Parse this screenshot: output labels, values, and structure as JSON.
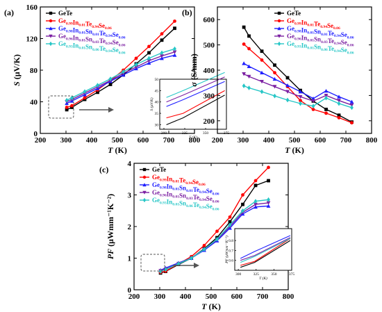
{
  "figure": {
    "panels": [
      "(a)",
      "(b)",
      "(c)"
    ]
  },
  "chart_data": [
    {
      "panel": "(a)",
      "type": "line",
      "xlabel": "T (K)",
      "ylabel": "S (μV/K)",
      "xlim": [
        200,
        800
      ],
      "ylim": [
        0,
        160
      ],
      "xticks": [
        200,
        300,
        400,
        500,
        600,
        700,
        800
      ],
      "yticks": [
        0,
        40,
        80,
        120,
        160
      ],
      "grid": false,
      "legend": "top-left",
      "series": [
        {
          "name": "GeTe",
          "color": "#000000",
          "marker": "square",
          "x": [
            303,
            323,
            373,
            423,
            473,
            523,
            573,
            623,
            673,
            723
          ],
          "y": [
            30,
            33,
            43,
            52,
            62,
            74,
            88,
            102,
            118,
            133
          ]
        },
        {
          "name": "Ge0.99In0.01Te0.94Se0.06",
          "color": "#ff0000",
          "marker": "circle",
          "x": [
            303,
            323,
            373,
            423,
            473,
            523,
            573,
            623,
            673,
            723
          ],
          "y": [
            33,
            35,
            45,
            55,
            67,
            80,
            95,
            110,
            126,
            142
          ]
        },
        {
          "name": "Ge0.98In0.01Sn0.01Te0.94Se0.06",
          "color": "#1f1fff",
          "marker": "triangle-up",
          "x": [
            303,
            323,
            373,
            423,
            473,
            523,
            573,
            623,
            673,
            723
          ],
          "y": [
            38,
            41,
            49,
            57,
            66,
            74,
            82,
            89,
            95,
            99
          ]
        },
        {
          "name": "Ge0.96In0.01Sn0.03Te0.94Se0.06",
          "color": "#7b1fa2",
          "marker": "triangle-down",
          "x": [
            303,
            323,
            373,
            423,
            473,
            523,
            573,
            623,
            673,
            723
          ],
          "y": [
            40,
            43,
            51,
            59,
            67,
            76,
            84,
            92,
            98,
            103
          ]
        },
        {
          "name": "Ge0.93In0.01Sn0.06Te0.94Se0.06",
          "color": "#26c6c6",
          "marker": "diamond",
          "x": [
            303,
            323,
            373,
            423,
            473,
            523,
            573,
            623,
            673,
            723
          ],
          "y": [
            42,
            45,
            53,
            61,
            69,
            78,
            87,
            95,
            102,
            107
          ]
        }
      ],
      "inset": {
        "xlabel": "T (K)",
        "ylabel": "S (μV/K)",
        "xlim": [
          295,
          375
        ],
        "ylim": [
          28,
          50
        ],
        "xticks": [
          300,
          325,
          350,
          375
        ],
        "yticks": [
          30,
          35,
          40,
          45,
          50
        ]
      }
    },
    {
      "panel": "(b)",
      "type": "line",
      "xlabel": "T (K)",
      "ylabel": "σ (S/mm)",
      "xlim": [
        200,
        800
      ],
      "ylim": [
        150,
        650
      ],
      "xticks": [
        200,
        300,
        400,
        500,
        600,
        700,
        800
      ],
      "yticks": [
        200,
        300,
        400,
        500,
        600
      ],
      "grid": false,
      "legend": "top-right",
      "series": [
        {
          "name": "GeTe",
          "color": "#000000",
          "marker": "square",
          "x": [
            303,
            323,
            373,
            423,
            473,
            523,
            573,
            623,
            673,
            723
          ],
          "y": [
            570,
            535,
            475,
            420,
            370,
            320,
            278,
            245,
            222,
            195
          ]
        },
        {
          "name": "Ge0.99In0.01Te0.94Se0.06",
          "color": "#ff0000",
          "marker": "circle",
          "x": [
            303,
            323,
            373,
            423,
            473,
            523,
            573,
            623,
            673,
            723
          ],
          "y": [
            503,
            485,
            440,
            390,
            335,
            280,
            245,
            230,
            212,
            192
          ]
        },
        {
          "name": "Ge0.98In0.01Sn0.01Te0.94Se0.06",
          "color": "#1f1fff",
          "marker": "triangle-up",
          "x": [
            303,
            323,
            373,
            423,
            473,
            523,
            573,
            623,
            673,
            723
          ],
          "y": [
            427,
            415,
            390,
            365,
            340,
            315,
            288,
            318,
            295,
            275
          ]
        },
        {
          "name": "Ge0.96In0.01Sn0.03Te0.94Se0.06",
          "color": "#7b1fa2",
          "marker": "triangle-down",
          "x": [
            303,
            323,
            373,
            423,
            473,
            523,
            573,
            623,
            673,
            723
          ],
          "y": [
            385,
            375,
            355,
            335,
            315,
            295,
            278,
            300,
            280,
            262
          ]
        },
        {
          "name": "Ge0.93In0.01Sn0.06Te0.94Se0.06",
          "color": "#26c6c6",
          "marker": "diamond",
          "x": [
            303,
            323,
            373,
            423,
            473,
            523,
            573,
            623,
            673,
            723
          ],
          "y": [
            338,
            330,
            315,
            298,
            282,
            268,
            258,
            290,
            268,
            252
          ]
        }
      ]
    },
    {
      "panel": "(c)",
      "type": "line",
      "xlabel": "T (K)",
      "ylabel": "PF (μWmm⁻¹K⁻²)",
      "xlim": [
        200,
        800
      ],
      "ylim": [
        0,
        4
      ],
      "xticks": [
        200,
        300,
        400,
        500,
        600,
        700,
        800
      ],
      "yticks": [
        0,
        1,
        2,
        3,
        4
      ],
      "grid": false,
      "legend": "top-left",
      "series": [
        {
          "name": "GeTe",
          "color": "#000000",
          "marker": "square",
          "x": [
            303,
            323,
            373,
            423,
            473,
            523,
            573,
            623,
            673,
            723
          ],
          "y": [
            0.53,
            0.58,
            0.8,
            1.0,
            1.3,
            1.65,
            2.15,
            2.7,
            3.3,
            3.45
          ]
        },
        {
          "name": "Ge0.99In0.01Te0.94Se0.06",
          "color": "#ff0000",
          "marker": "circle",
          "x": [
            303,
            323,
            373,
            423,
            473,
            523,
            573,
            623,
            673,
            723
          ],
          "y": [
            0.55,
            0.59,
            0.82,
            1.05,
            1.4,
            1.85,
            2.3,
            3.0,
            3.45,
            3.87
          ]
        },
        {
          "name": "Ge0.98In0.01Sn0.01Te0.94Se0.06",
          "color": "#1f1fff",
          "marker": "triangle-up",
          "x": [
            303,
            323,
            373,
            423,
            473,
            523,
            573,
            623,
            673,
            723
          ],
          "y": [
            0.62,
            0.69,
            0.85,
            1.0,
            1.25,
            1.55,
            1.95,
            2.4,
            2.62,
            2.65
          ]
        },
        {
          "name": "Ge0.96In0.01Sn0.03Te0.94Se0.06",
          "color": "#7b1fa2",
          "marker": "triangle-down",
          "x": [
            303,
            323,
            373,
            423,
            473,
            523,
            573,
            623,
            673,
            723
          ],
          "y": [
            0.6,
            0.65,
            0.83,
            1.0,
            1.28,
            1.58,
            2.0,
            2.45,
            2.7,
            2.75
          ]
        },
        {
          "name": "Ge0.93In0.01Sn0.06Te0.94Se0.06",
          "color": "#26c6c6",
          "marker": "diamond",
          "x": [
            303,
            323,
            373,
            423,
            473,
            523,
            573,
            623,
            673,
            723
          ],
          "y": [
            0.58,
            0.64,
            0.82,
            1.0,
            1.28,
            1.6,
            2.05,
            2.5,
            2.8,
            2.85
          ]
        }
      ],
      "inset": {
        "xlabel": "T (K)",
        "ylabel": "PF (μWmm⁻¹K⁻²)",
        "xlim": [
          295,
          375
        ],
        "ylim": [
          0.5,
          0.92
        ],
        "xticks": [
          300,
          325,
          350,
          375
        ],
        "yticks": [
          0.6,
          0.7,
          0.8
        ]
      }
    }
  ]
}
